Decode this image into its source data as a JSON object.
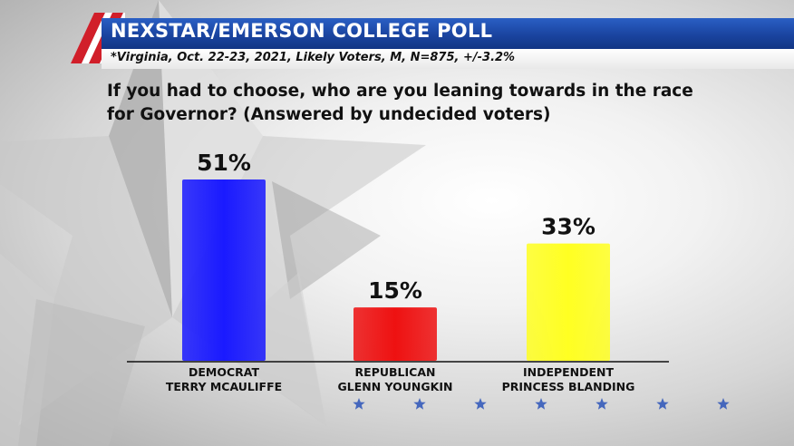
{
  "header": {
    "title": "NEXSTAR/EMERSON COLLEGE POLL",
    "subtitle": "*Virginia, Oct. 22-23, 2021, Likely Voters, M, N=875, +/-3.2%"
  },
  "question": "If you had to choose, who are you leaning towards in the race for Governor? (Answered by undecided voters)",
  "colors": {
    "democrat": "#1a1aff",
    "republican": "#ee1111",
    "independent": "#ffff22",
    "banner_blue": "#1a44a0",
    "stripe_red": "#d11f2a"
  },
  "chart_data": {
    "type": "bar",
    "categories": [
      [
        "DEMOCRAT",
        "TERRY MCAULIFFE"
      ],
      [
        "REPUBLICAN",
        "GLENN YOUNGKIN"
      ],
      [
        "INDEPENDENT",
        "PRINCESS BLANDING"
      ]
    ],
    "values": [
      51,
      15,
      33
    ],
    "value_labels": [
      "51%",
      "15%",
      "33%"
    ],
    "colors": [
      "#1a1aff",
      "#ee1111",
      "#ffff22"
    ],
    "ylim": [
      0,
      51
    ],
    "grid": false,
    "legend": "none"
  },
  "decorations": {
    "star_count": 7,
    "star_icon": "star-icon"
  }
}
